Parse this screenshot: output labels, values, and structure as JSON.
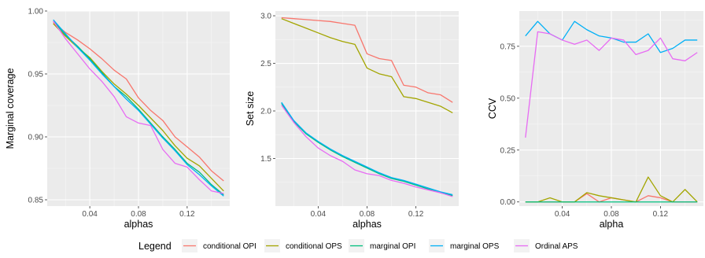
{
  "legend": {
    "title": "Legend",
    "position": "bottom",
    "entries": [
      {
        "name": "conditional OPI",
        "color": "#F8766D"
      },
      {
        "name": "conditional OPS",
        "color": "#A3A500"
      },
      {
        "name": "marginal OPI",
        "color": "#00BF7D"
      },
      {
        "name": "marginal OPS",
        "color": "#00B0F6"
      },
      {
        "name": "Ordinal APS",
        "color": "#E76BF3"
      }
    ]
  },
  "chart_data": [
    {
      "type": "line",
      "xlabel": "alphas",
      "ylabel": "Marginal coverage",
      "xlim": [
        0.005,
        0.155
      ],
      "ylim": [
        0.845,
        1.0
      ],
      "xticks": [
        0.04,
        0.08,
        0.12
      ],
      "xtick_labels": [
        "0.04",
        "0.08",
        "0.12"
      ],
      "yticks": [
        0.85,
        0.9,
        0.95,
        1.0
      ],
      "ytick_labels": [
        "0.85",
        "0.90",
        "0.95",
        "1.00"
      ],
      "grid": true,
      "x": [
        0.01,
        0.02,
        0.03,
        0.04,
        0.05,
        0.06,
        0.07,
        0.08,
        0.09,
        0.1,
        0.11,
        0.12,
        0.13,
        0.14,
        0.15
      ],
      "series": [
        {
          "name": "conditional OPI",
          "values": [
            0.991,
            0.983,
            0.977,
            0.97,
            0.962,
            0.953,
            0.946,
            0.931,
            0.921,
            0.913,
            0.9,
            0.892,
            0.884,
            0.873,
            0.865
          ]
        },
        {
          "name": "conditional OPS",
          "values": [
            0.99,
            0.98,
            0.971,
            0.963,
            0.952,
            0.942,
            0.934,
            0.925,
            0.915,
            0.905,
            0.893,
            0.883,
            0.877,
            0.867,
            0.857
          ]
        },
        {
          "name": "marginal OPI",
          "values": [
            0.992,
            0.981,
            0.972,
            0.962,
            0.951,
            0.94,
            0.932,
            0.922,
            0.911,
            0.9,
            0.89,
            0.879,
            0.872,
            0.862,
            0.854
          ]
        },
        {
          "name": "marginal OPS",
          "values": [
            0.993,
            0.982,
            0.971,
            0.961,
            0.95,
            0.94,
            0.93,
            0.921,
            0.91,
            0.899,
            0.889,
            0.878,
            0.87,
            0.861,
            0.853
          ]
        },
        {
          "name": "Ordinal APS",
          "values": [
            0.992,
            0.978,
            0.966,
            0.954,
            0.944,
            0.932,
            0.916,
            0.911,
            0.909,
            0.89,
            0.879,
            0.876,
            0.866,
            0.857,
            0.855
          ]
        }
      ]
    },
    {
      "type": "line",
      "xlabel": "alphas",
      "ylabel": "Set size",
      "xlim": [
        0.005,
        0.155
      ],
      "ylim": [
        1.0,
        3.05
      ],
      "xticks": [
        0.04,
        0.08,
        0.12
      ],
      "xtick_labels": [
        "0.04",
        "0.08",
        "0.12"
      ],
      "yticks": [
        1.5,
        2.0,
        2.5,
        3.0
      ],
      "ytick_labels": [
        "1.5",
        "2.0",
        "2.5",
        "3.0"
      ],
      "grid": true,
      "x": [
        0.01,
        0.02,
        0.03,
        0.04,
        0.05,
        0.06,
        0.07,
        0.08,
        0.09,
        0.1,
        0.11,
        0.12,
        0.13,
        0.14,
        0.15
      ],
      "series": [
        {
          "name": "conditional OPI",
          "values": [
            2.98,
            2.97,
            2.96,
            2.95,
            2.94,
            2.92,
            2.9,
            2.6,
            2.55,
            2.53,
            2.27,
            2.25,
            2.19,
            2.17,
            2.09
          ]
        },
        {
          "name": "conditional OPS",
          "values": [
            2.97,
            2.92,
            2.87,
            2.82,
            2.77,
            2.73,
            2.7,
            2.45,
            2.39,
            2.36,
            2.15,
            2.13,
            2.09,
            2.05,
            1.98
          ]
        },
        {
          "name": "marginal OPI",
          "values": [
            2.08,
            1.89,
            1.76,
            1.67,
            1.59,
            1.52,
            1.46,
            1.4,
            1.34,
            1.29,
            1.26,
            1.22,
            1.18,
            1.14,
            1.11
          ]
        },
        {
          "name": "marginal OPS",
          "values": [
            2.09,
            1.9,
            1.77,
            1.68,
            1.6,
            1.53,
            1.47,
            1.41,
            1.35,
            1.3,
            1.27,
            1.23,
            1.19,
            1.15,
            1.12
          ]
        },
        {
          "name": "Ordinal APS",
          "values": [
            2.06,
            1.88,
            1.73,
            1.61,
            1.53,
            1.47,
            1.38,
            1.34,
            1.32,
            1.27,
            1.24,
            1.2,
            1.17,
            1.14,
            1.1
          ]
        }
      ]
    },
    {
      "type": "line",
      "xlabel": "alpha",
      "ylabel": "CCV",
      "xlim": [
        0.005,
        0.155
      ],
      "ylim": [
        -0.02,
        0.92
      ],
      "xticks": [
        0.04,
        0.08,
        0.12
      ],
      "xtick_labels": [
        "0.04",
        "0.08",
        "0.12"
      ],
      "yticks": [
        0.0,
        0.25,
        0.5,
        0.75
      ],
      "ytick_labels": [
        "0.00",
        "0.25",
        "0.50",
        "0.75"
      ],
      "grid": true,
      "x": [
        0.01,
        0.02,
        0.03,
        0.04,
        0.05,
        0.06,
        0.07,
        0.08,
        0.09,
        0.1,
        0.11,
        0.12,
        0.13,
        0.14,
        0.15
      ],
      "series": [
        {
          "name": "conditional OPI",
          "values": [
            0.0,
            0.0,
            0.0,
            0.0,
            0.0,
            0.04,
            0.0,
            0.02,
            0.01,
            0.0,
            0.03,
            0.02,
            0.0,
            0.0,
            0.0
          ]
        },
        {
          "name": "conditional OPS",
          "values": [
            0.0,
            0.0,
            0.02,
            0.0,
            0.0,
            0.045,
            0.03,
            0.02,
            0.01,
            0.0,
            0.12,
            0.03,
            0.0,
            0.06,
            0.0
          ]
        },
        {
          "name": "marginal OPI",
          "values": [
            0.0,
            0.0,
            0.0,
            0.0,
            0.0,
            0.0,
            0.0,
            0.0,
            0.0,
            0.0,
            0.0,
            0.0,
            0.0,
            0.0,
            0.0
          ]
        },
        {
          "name": "marginal OPS",
          "values": [
            0.8,
            0.87,
            0.81,
            0.78,
            0.87,
            0.83,
            0.8,
            0.79,
            0.77,
            0.77,
            0.81,
            0.72,
            0.74,
            0.78,
            0.78
          ]
        },
        {
          "name": "Ordinal APS",
          "values": [
            0.31,
            0.82,
            0.81,
            0.78,
            0.76,
            0.78,
            0.73,
            0.79,
            0.78,
            0.71,
            0.73,
            0.79,
            0.69,
            0.68,
            0.72
          ]
        }
      ]
    }
  ]
}
